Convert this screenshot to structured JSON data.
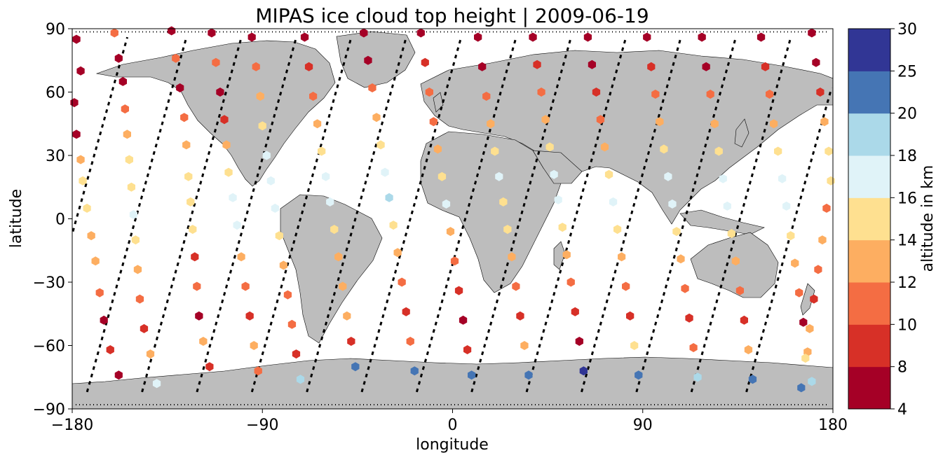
{
  "title": "MIPAS ice cloud top height | 2009-06-19",
  "axes": {
    "xlabel": "longitude",
    "ylabel": "latitude",
    "xticks": [
      "−180",
      "−90",
      "0",
      "90",
      "180"
    ],
    "yticks": [
      "90",
      "60",
      "30",
      "0",
      "−30",
      "−60",
      "−90"
    ],
    "xlim": [
      -180,
      180
    ],
    "ylim": [
      -90,
      90
    ]
  },
  "colorbar": {
    "label": "altitude in km",
    "ticks": [
      "4",
      "8",
      "10",
      "12",
      "14",
      "16",
      "18",
      "20",
      "25",
      "30"
    ],
    "bins": [
      {
        "from": 4,
        "to": 8,
        "color": "#a50026"
      },
      {
        "from": 8,
        "to": 10,
        "color": "#d73027"
      },
      {
        "from": 10,
        "to": 12,
        "color": "#f46d43"
      },
      {
        "from": 12,
        "to": 14,
        "color": "#fdae61"
      },
      {
        "from": 14,
        "to": 16,
        "color": "#fee090"
      },
      {
        "from": 16,
        "to": 18,
        "color": "#e0f3f8"
      },
      {
        "from": 18,
        "to": 20,
        "color": "#abd9e9"
      },
      {
        "from": 20,
        "to": 25,
        "color": "#4575b4"
      },
      {
        "from": 25,
        "to": 30,
        "color": "#313695"
      }
    ]
  },
  "map_style": {
    "land_color": "#bdbdbd",
    "coast_color": "#000000",
    "track_color": "#000000"
  },
  "chart_data": {
    "type": "scatter",
    "description_fields": "points are [longitude, latitude, cloud_top_altitude_km]",
    "orbit_tracks_equator_lon": [
      -178,
      -150,
      -124,
      -98,
      -72,
      -46,
      -20,
      6,
      32,
      58,
      84,
      110,
      136,
      162
    ],
    "points": [
      [
        -178,
        85,
        7
      ],
      [
        -176,
        70,
        7
      ],
      [
        -179,
        55,
        7
      ],
      [
        -178,
        40,
        7
      ],
      [
        -176,
        28,
        13
      ],
      [
        -175,
        18,
        15
      ],
      [
        -173,
        5,
        14
      ],
      [
        -171,
        -8,
        13
      ],
      [
        -169,
        -20,
        13
      ],
      [
        -167,
        -35,
        11
      ],
      [
        -165,
        -48,
        7
      ],
      [
        -162,
        -62,
        9
      ],
      [
        -158,
        -74,
        7
      ],
      [
        -160,
        88,
        11
      ],
      [
        -158,
        76,
        7
      ],
      [
        -156,
        65,
        7
      ],
      [
        -155,
        52,
        11
      ],
      [
        -154,
        40,
        12
      ],
      [
        -153,
        28,
        14
      ],
      [
        -152,
        15,
        15
      ],
      [
        -151,
        2,
        16
      ],
      [
        -150,
        -10,
        14
      ],
      [
        -149,
        -24,
        13
      ],
      [
        -148,
        -38,
        11
      ],
      [
        -146,
        -52,
        9
      ],
      [
        -143,
        -64,
        12
      ],
      [
        -140,
        -78,
        16
      ],
      [
        -133,
        89,
        7
      ],
      [
        -131,
        76,
        11
      ],
      [
        -129,
        62,
        7
      ],
      [
        -127,
        48,
        11
      ],
      [
        -126,
        35,
        13
      ],
      [
        -125,
        20,
        14
      ],
      [
        -124,
        8,
        15
      ],
      [
        -123,
        -5,
        14
      ],
      [
        -122,
        -18,
        9
      ],
      [
        -121,
        -32,
        10
      ],
      [
        -120,
        -46,
        7
      ],
      [
        -118,
        -58,
        12
      ],
      [
        -115,
        -70,
        9
      ],
      [
        -114,
        88,
        7
      ],
      [
        -112,
        74,
        11
      ],
      [
        -110,
        60,
        7
      ],
      [
        -108,
        47,
        9
      ],
      [
        -107,
        35,
        12
      ],
      [
        -106,
        22,
        15
      ],
      [
        -104,
        10,
        16
      ],
      [
        -102,
        -3,
        17
      ],
      [
        -100,
        -18,
        13
      ],
      [
        -98,
        -32,
        11
      ],
      [
        -96,
        -46,
        9
      ],
      [
        -94,
        -60,
        13
      ],
      [
        -92,
        -72,
        11
      ],
      [
        -95,
        86,
        7
      ],
      [
        -93,
        72,
        11
      ],
      [
        -91,
        58,
        12
      ],
      [
        -90,
        44,
        14
      ],
      [
        -88,
        30,
        16
      ],
      [
        -86,
        18,
        17
      ],
      [
        -84,
        5,
        17
      ],
      [
        -82,
        -8,
        15
      ],
      [
        -80,
        -22,
        12
      ],
      [
        -78,
        -36,
        10
      ],
      [
        -76,
        -50,
        11
      ],
      [
        -74,
        -64,
        9
      ],
      [
        -72,
        -76,
        19
      ],
      [
        -70,
        86,
        7
      ],
      [
        -68,
        72,
        9
      ],
      [
        -66,
        58,
        10
      ],
      [
        -64,
        45,
        13
      ],
      [
        -62,
        32,
        15
      ],
      [
        -60,
        20,
        16
      ],
      [
        -58,
        8,
        17
      ],
      [
        -56,
        -5,
        15
      ],
      [
        -54,
        -18,
        12
      ],
      [
        -52,
        -32,
        13
      ],
      [
        -50,
        -46,
        12
      ],
      [
        -48,
        -58,
        9
      ],
      [
        -46,
        -70,
        21
      ],
      [
        -42,
        88,
        7
      ],
      [
        -40,
        75,
        7
      ],
      [
        -38,
        62,
        10
      ],
      [
        -36,
        48,
        12
      ],
      [
        -34,
        35,
        14
      ],
      [
        -32,
        22,
        16
      ],
      [
        -30,
        10,
        18
      ],
      [
        -28,
        -3,
        15
      ],
      [
        -26,
        -16,
        13
      ],
      [
        -24,
        -30,
        11
      ],
      [
        -22,
        -44,
        9
      ],
      [
        -20,
        -58,
        11
      ],
      [
        -18,
        -72,
        22
      ],
      [
        -15,
        88,
        7
      ],
      [
        -13,
        74,
        9
      ],
      [
        -11,
        60,
        10
      ],
      [
        -9,
        46,
        11
      ],
      [
        -7,
        33,
        13
      ],
      [
        -5,
        20,
        15
      ],
      [
        -3,
        7,
        16
      ],
      [
        -1,
        -6,
        13
      ],
      [
        1,
        -20,
        11
      ],
      [
        3,
        -34,
        9
      ],
      [
        5,
        -48,
        7
      ],
      [
        7,
        -62,
        9
      ],
      [
        9,
        -74,
        21
      ],
      [
        12,
        86,
        7
      ],
      [
        14,
        72,
        7
      ],
      [
        16,
        58,
        11
      ],
      [
        18,
        45,
        13
      ],
      [
        20,
        32,
        14
      ],
      [
        22,
        20,
        16
      ],
      [
        24,
        8,
        15
      ],
      [
        26,
        -5,
        14
      ],
      [
        28,
        -18,
        12
      ],
      [
        30,
        -32,
        11
      ],
      [
        32,
        -46,
        9
      ],
      [
        34,
        -60,
        13
      ],
      [
        36,
        -74,
        21
      ],
      [
        38,
        86,
        7
      ],
      [
        40,
        73,
        9
      ],
      [
        42,
        60,
        10
      ],
      [
        44,
        47,
        12
      ],
      [
        46,
        34,
        14
      ],
      [
        48,
        21,
        16
      ],
      [
        50,
        9,
        17
      ],
      [
        52,
        -4,
        15
      ],
      [
        54,
        -17,
        13
      ],
      [
        56,
        -30,
        11
      ],
      [
        58,
        -44,
        9
      ],
      [
        60,
        -58,
        7
      ],
      [
        62,
        -72,
        26
      ],
      [
        64,
        86,
        7
      ],
      [
        66,
        73,
        7
      ],
      [
        68,
        60,
        9
      ],
      [
        70,
        47,
        11
      ],
      [
        72,
        34,
        13
      ],
      [
        74,
        21,
        15
      ],
      [
        76,
        8,
        16
      ],
      [
        78,
        -5,
        15
      ],
      [
        80,
        -18,
        13
      ],
      [
        82,
        -32,
        11
      ],
      [
        84,
        -46,
        9
      ],
      [
        86,
        -60,
        14
      ],
      [
        88,
        -74,
        21
      ],
      [
        92,
        86,
        7
      ],
      [
        94,
        72,
        9
      ],
      [
        96,
        59,
        11
      ],
      [
        98,
        46,
        12
      ],
      [
        100,
        33,
        15
      ],
      [
        102,
        20,
        16
      ],
      [
        104,
        7,
        17
      ],
      [
        106,
        -6,
        15
      ],
      [
        108,
        -19,
        13
      ],
      [
        110,
        -33,
        10
      ],
      [
        112,
        -47,
        9
      ],
      [
        114,
        -61,
        11
      ],
      [
        116,
        -75,
        19
      ],
      [
        118,
        86,
        7
      ],
      [
        120,
        72,
        7
      ],
      [
        122,
        59,
        10
      ],
      [
        124,
        45,
        12
      ],
      [
        126,
        32,
        14
      ],
      [
        128,
        19,
        16
      ],
      [
        130,
        6,
        17
      ],
      [
        132,
        -7,
        15
      ],
      [
        134,
        -20,
        12
      ],
      [
        136,
        -34,
        10
      ],
      [
        138,
        -48,
        9
      ],
      [
        140,
        -62,
        12
      ],
      [
        142,
        -76,
        21
      ],
      [
        146,
        86,
        7
      ],
      [
        148,
        72,
        9
      ],
      [
        150,
        59,
        11
      ],
      [
        152,
        45,
        13
      ],
      [
        154,
        32,
        15
      ],
      [
        156,
        19,
        16
      ],
      [
        158,
        6,
        16
      ],
      [
        160,
        -8,
        14
      ],
      [
        162,
        -21,
        12
      ],
      [
        164,
        -35,
        10
      ],
      [
        166,
        -49,
        7
      ],
      [
        168,
        -63,
        13
      ],
      [
        170,
        -77,
        19
      ],
      [
        170,
        88,
        7
      ],
      [
        172,
        74,
        7
      ],
      [
        174,
        60,
        9
      ],
      [
        176,
        46,
        12
      ],
      [
        178,
        32,
        14
      ],
      [
        179,
        18,
        15
      ],
      [
        177,
        5,
        11
      ],
      [
        175,
        -10,
        13
      ],
      [
        173,
        -24,
        11
      ],
      [
        171,
        -38,
        9
      ],
      [
        169,
        -52,
        12
      ],
      [
        167,
        -66,
        14
      ],
      [
        165,
        -80,
        21
      ]
    ]
  }
}
